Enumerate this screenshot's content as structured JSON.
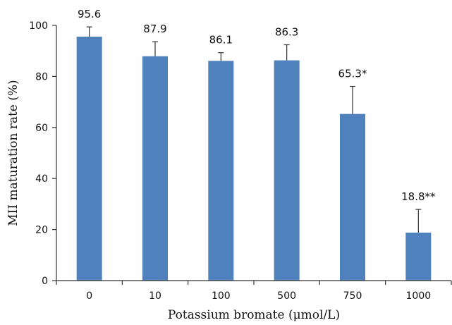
{
  "chart_data": {
    "type": "bar",
    "title": "",
    "xlabel": "Potassium bromate (μmol/L)",
    "ylabel": "MII maturation rate (%)",
    "categories": [
      "0",
      "10",
      "100",
      "500",
      "750",
      "1000"
    ],
    "values": [
      95.6,
      87.9,
      86.1,
      86.3,
      65.3,
      18.8
    ],
    "error_upper": [
      99.4,
      93.6,
      89.3,
      92.4,
      76.1,
      27.9
    ],
    "data_labels": [
      "95.6",
      "87.9",
      "86.1",
      "86.3",
      "65.3*",
      "18.8**"
    ],
    "ylim": [
      0,
      100
    ],
    "yticks": [
      0,
      20,
      40,
      60,
      80,
      100
    ],
    "grid": false,
    "legend": "none",
    "bar_color": "#4f81bd"
  }
}
